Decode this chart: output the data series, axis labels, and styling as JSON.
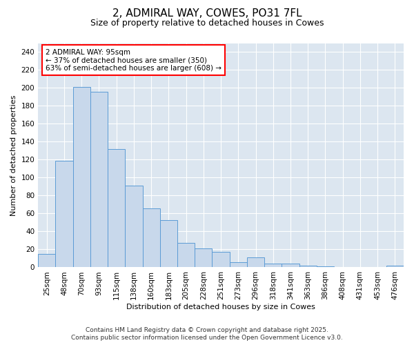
{
  "title": "2, ADMIRAL WAY, COWES, PO31 7FL",
  "subtitle": "Size of property relative to detached houses in Cowes",
  "xlabel": "Distribution of detached houses by size in Cowes",
  "ylabel": "Number of detached properties",
  "bar_color": "#c8d8eb",
  "bar_edge_color": "#5b9bd5",
  "background_color": "#dce6f0",
  "fig_background": "#ffffff",
  "categories": [
    "25sqm",
    "48sqm",
    "70sqm",
    "93sqm",
    "115sqm",
    "138sqm",
    "160sqm",
    "183sqm",
    "205sqm",
    "228sqm",
    "251sqm",
    "273sqm",
    "296sqm",
    "318sqm",
    "341sqm",
    "363sqm",
    "386sqm",
    "408sqm",
    "431sqm",
    "453sqm",
    "476sqm"
  ],
  "values": [
    15,
    119,
    201,
    196,
    132,
    91,
    66,
    53,
    27,
    21,
    17,
    6,
    11,
    4,
    4,
    2,
    1,
    0,
    0,
    0,
    2
  ],
  "ylim": [
    0,
    250
  ],
  "yticks": [
    0,
    20,
    40,
    60,
    80,
    100,
    120,
    140,
    160,
    180,
    200,
    220,
    240
  ],
  "annotation_title": "2 ADMIRAL WAY: 95sqm",
  "annotation_line1": "← 37% of detached houses are smaller (350)",
  "annotation_line2": "63% of semi-detached houses are larger (608) →",
  "footnote1": "Contains HM Land Registry data © Crown copyright and database right 2025.",
  "footnote2": "Contains public sector information licensed under the Open Government Licence v3.0.",
  "title_fontsize": 11,
  "subtitle_fontsize": 9,
  "axis_label_fontsize": 8,
  "tick_fontsize": 7.5,
  "annotation_fontsize": 7.5,
  "footnote_fontsize": 6.5
}
